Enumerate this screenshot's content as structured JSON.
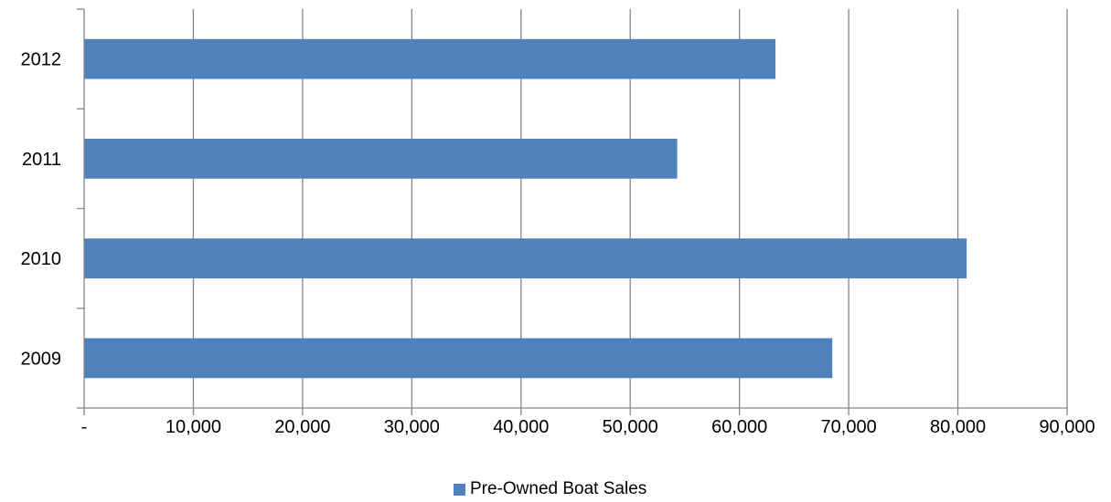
{
  "chart_data": {
    "type": "bar",
    "orientation": "horizontal",
    "categories": [
      "2012",
      "2011",
      "2010",
      "2009"
    ],
    "series": [
      {
        "name": "Pre-Owned Boat Sales",
        "values": [
          63300,
          54300,
          80800,
          68500
        ],
        "color": "#4f81bd"
      }
    ],
    "x_tick_labels": [
      "-",
      "10,000",
      "20,000",
      "30,000",
      "40,000",
      "50,000",
      "60,000",
      "70,000",
      "80,000",
      "90,000"
    ],
    "xlim": [
      0,
      90000
    ],
    "grid": "vertical",
    "legend_position": "bottom"
  }
}
